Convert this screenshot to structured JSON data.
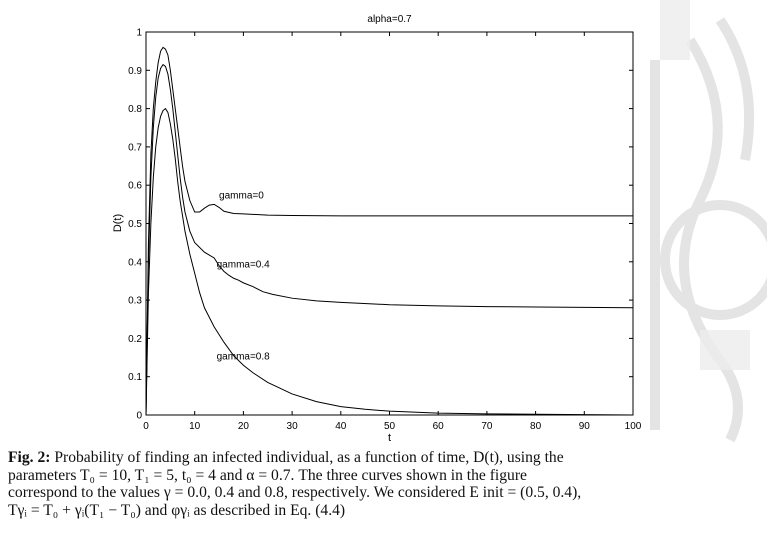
{
  "chart_data": {
    "type": "line",
    "title": "alpha=0.7",
    "xlabel": "t",
    "ylabel": "D(t)",
    "xlim": [
      0,
      100
    ],
    "ylim": [
      0,
      1
    ],
    "grid": false,
    "legend": "none",
    "xticks": [
      "0",
      "10",
      "20",
      "30",
      "40",
      "50",
      "60",
      "70",
      "80",
      "90",
      "100"
    ],
    "yticks": [
      "0",
      "0.1",
      "0.2",
      "0.3",
      "0.4",
      "0.5",
      "0.6",
      "0.7",
      "0.8",
      "0.9",
      "1"
    ],
    "series": [
      {
        "x": [
          0,
          0.5,
          1,
          1.5,
          2,
          2.5,
          3,
          3.5,
          4,
          4.5,
          5,
          5.5,
          6,
          6.5,
          7,
          7.5,
          8,
          9,
          10,
          11,
          12,
          13,
          14,
          15,
          16,
          18,
          20,
          25,
          30,
          40,
          50,
          60,
          70,
          80,
          90,
          100
        ],
        "y": [
          0.0,
          0.45,
          0.68,
          0.8,
          0.87,
          0.92,
          0.95,
          0.96,
          0.955,
          0.94,
          0.9,
          0.85,
          0.8,
          0.75,
          0.7,
          0.65,
          0.61,
          0.56,
          0.53,
          0.53,
          0.54,
          0.548,
          0.55,
          0.542,
          0.532,
          0.526,
          0.525,
          0.522,
          0.521,
          0.52,
          0.52,
          0.52,
          0.52,
          0.52,
          0.52,
          0.52
        ]
      },
      {
        "x": [
          0,
          0.5,
          1,
          1.5,
          2,
          2.5,
          3,
          3.5,
          4,
          4.5,
          5,
          5.5,
          6,
          6.5,
          7,
          7.5,
          8,
          9,
          10,
          12,
          14,
          15,
          16,
          17,
          18,
          19,
          20,
          22,
          24,
          26,
          30,
          35,
          40,
          50,
          60,
          70,
          80,
          90,
          100
        ],
        "y": [
          0.0,
          0.4,
          0.62,
          0.75,
          0.83,
          0.88,
          0.905,
          0.915,
          0.91,
          0.89,
          0.85,
          0.8,
          0.74,
          0.68,
          0.62,
          0.57,
          0.53,
          0.48,
          0.45,
          0.425,
          0.41,
          0.39,
          0.375,
          0.365,
          0.357,
          0.352,
          0.345,
          0.335,
          0.322,
          0.315,
          0.305,
          0.298,
          0.294,
          0.288,
          0.285,
          0.283,
          0.282,
          0.281,
          0.28
        ]
      },
      {
        "x": [
          0,
          0.5,
          1,
          1.5,
          2,
          2.5,
          3,
          3.5,
          4,
          4.5,
          5,
          5.5,
          6,
          6.5,
          7,
          7.5,
          8,
          9,
          10,
          11,
          12,
          14,
          16,
          18,
          20,
          22,
          25,
          30,
          35,
          40,
          45,
          50,
          60,
          70,
          80,
          90,
          100
        ],
        "y": [
          0.0,
          0.32,
          0.5,
          0.62,
          0.7,
          0.75,
          0.78,
          0.795,
          0.8,
          0.79,
          0.76,
          0.72,
          0.67,
          0.61,
          0.56,
          0.52,
          0.48,
          0.42,
          0.37,
          0.32,
          0.28,
          0.23,
          0.19,
          0.155,
          0.13,
          0.11,
          0.085,
          0.055,
          0.035,
          0.022,
          0.015,
          0.01,
          0.005,
          0.003,
          0.002,
          0.001,
          0.0
        ]
      }
    ],
    "annotations": [
      {
        "text": "gamma=0",
        "x": 15,
        "y": 0.565
      },
      {
        "text": "gamma=0.4",
        "x": 14.5,
        "y": 0.385
      },
      {
        "text": "gamma=0.8",
        "x": 14.5,
        "y": 0.145
      }
    ]
  },
  "caption": {
    "line1_label": "Fig. 2:",
    "line1": " Probability of finding  an  infected individual, as a function of time, D(t), using  the",
    "line2": "parameters T₀ = 10, T₁ = 5, t₀ = 4 and α = 0.7. The three curves shown in the figure",
    "line3": "correspond to the values  γ = 0.0, 0.4 and 0.8, respectively. We considered E init = (0.5, 0.4),",
    "line4": "Tγᵢ = T₀ + γᵢ(T₁ − T₀) and φγᵢ as described in Eq. (4.4)"
  }
}
